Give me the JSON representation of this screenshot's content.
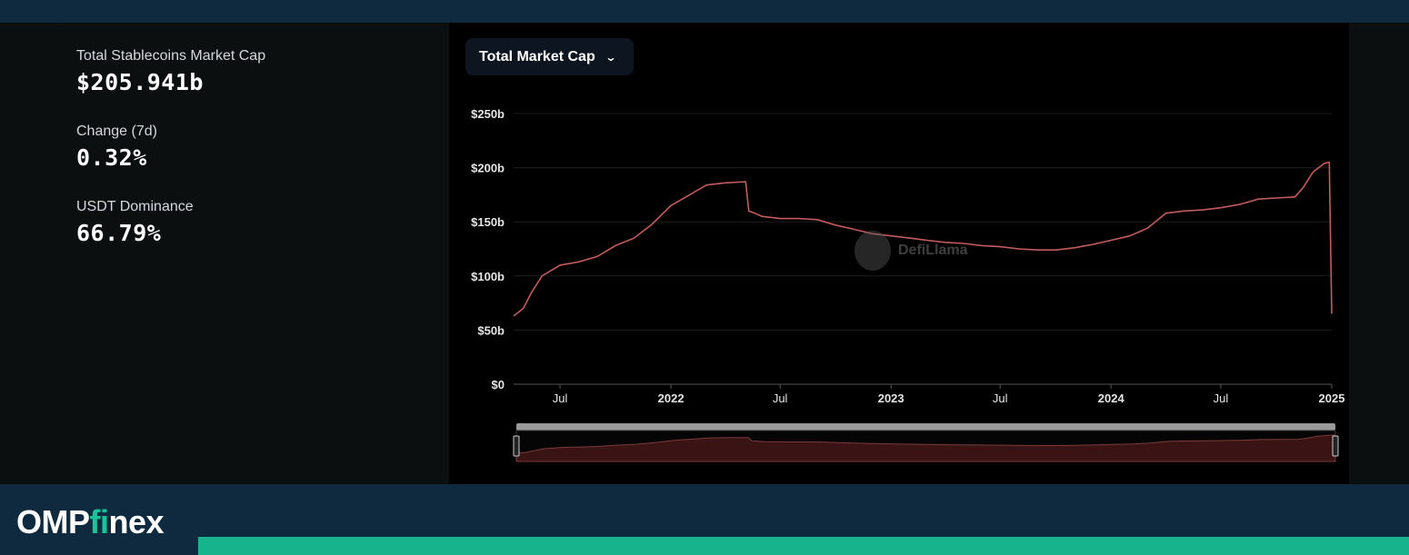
{
  "stats": [
    {
      "label": "Total Stablecoins Market Cap",
      "value": "$205.941b"
    },
    {
      "label": "Change (7d)",
      "value": "0.32%"
    },
    {
      "label": "USDT Dominance",
      "value": "66.79%"
    }
  ],
  "dropdown": {
    "label": "Total Market Cap",
    "icon": "chevron-down-icon"
  },
  "watermark": {
    "text": "DefiLlama"
  },
  "logo": {
    "prefix": "OMP",
    "accent": "fi",
    "suffix": "nex"
  },
  "colors": {
    "line": "#c25b5b",
    "brand_green": "#16b38c",
    "footer_bg": "#0f2a3e"
  },
  "chart_data": {
    "type": "line",
    "title": "",
    "xlabel": "",
    "ylabel": "",
    "y_tick_labels": [
      "$0",
      "$50b",
      "$100b",
      "$150b",
      "$200b",
      "$250b"
    ],
    "y_ticks": [
      0,
      50,
      100,
      150,
      200,
      250
    ],
    "ylim": [
      0,
      250
    ],
    "x_tick_labels": [
      "Jul",
      "2022",
      "Jul",
      "2023",
      "Jul",
      "2024",
      "Jul",
      "2025"
    ],
    "x_ticks": [
      "2021-07-01",
      "2022-01-01",
      "2022-07-01",
      "2023-01-01",
      "2023-07-01",
      "2024-01-01",
      "2024-07-01",
      "2025-01-01"
    ],
    "xlim": [
      "2021-04-15",
      "2025-01-01"
    ],
    "grid": true,
    "series": [
      {
        "x": [
          "2021-04-15",
          "2021-05-01",
          "2021-05-15",
          "2021-06-01",
          "2021-07-01",
          "2021-08-01",
          "2021-09-01",
          "2021-10-01",
          "2021-11-01",
          "2021-12-01",
          "2022-01-01",
          "2022-02-01",
          "2022-03-01",
          "2022-04-01",
          "2022-05-05",
          "2022-05-10",
          "2022-05-20",
          "2022-06-01",
          "2022-07-01",
          "2022-08-01",
          "2022-09-01",
          "2022-10-01",
          "2022-11-01",
          "2022-12-01",
          "2023-01-01",
          "2023-02-01",
          "2023-03-01",
          "2023-04-01",
          "2023-05-01",
          "2023-06-01",
          "2023-07-01",
          "2023-08-01",
          "2023-09-01",
          "2023-10-01",
          "2023-11-01",
          "2023-12-01",
          "2024-01-01",
          "2024-02-01",
          "2024-03-01",
          "2024-04-01",
          "2024-05-01",
          "2024-06-01",
          "2024-07-01",
          "2024-08-01",
          "2024-09-01",
          "2024-10-01",
          "2024-11-01",
          "2024-11-15",
          "2024-12-01",
          "2024-12-20",
          "2024-12-28",
          "2025-01-01"
        ],
        "values": [
          63,
          70,
          85,
          100,
          110,
          113,
          118,
          128,
          135,
          148,
          165,
          175,
          184,
          186,
          187,
          160,
          158,
          155,
          153,
          153,
          152,
          147,
          143,
          139,
          137,
          135,
          133,
          131,
          130,
          128,
          127,
          125,
          124,
          124,
          126,
          129,
          133,
          137,
          144,
          158,
          160,
          161,
          163,
          166,
          171,
          172,
          173,
          182,
          196,
          204,
          205,
          65
        ]
      }
    ]
  }
}
